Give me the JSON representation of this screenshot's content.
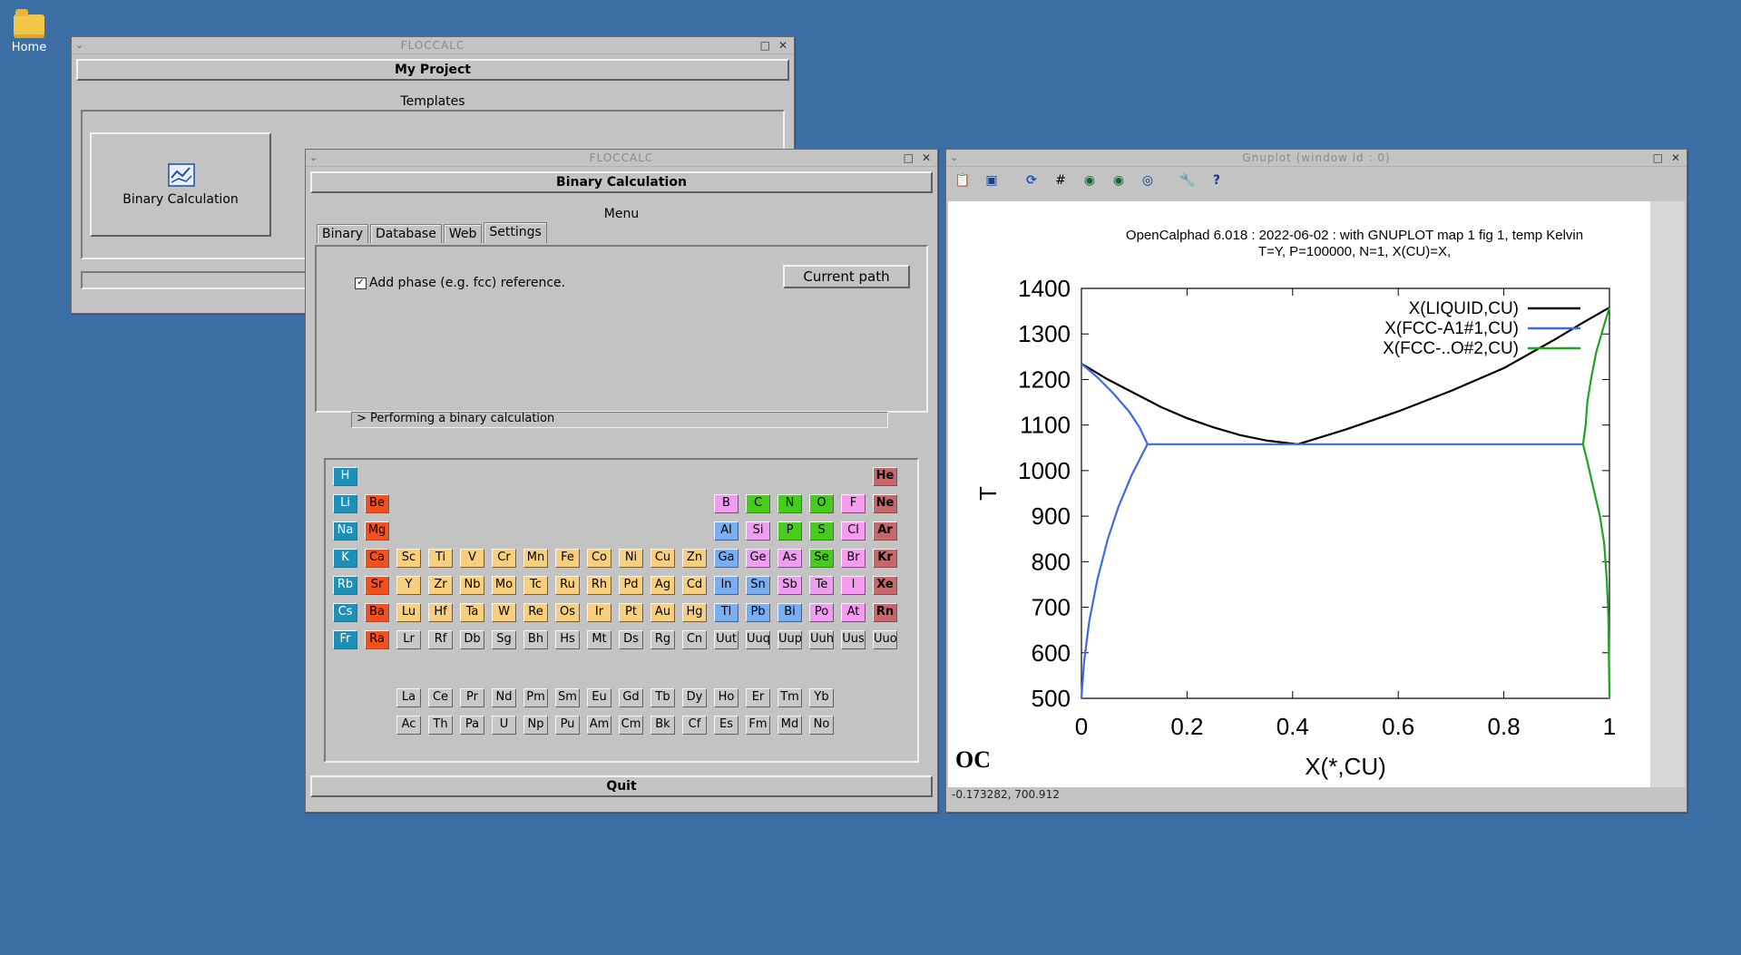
{
  "desktop": {
    "home_label": "Home"
  },
  "win_project": {
    "title": "FLOCCALC",
    "header": "My Project",
    "templates_label": "Templates",
    "binary_button": "Binary Calculation"
  },
  "win_binary": {
    "title": "FLOCCALC",
    "header": "Binary Calculation",
    "menu_label": "Menu",
    "tabs": [
      "Binary",
      "Database",
      "Web",
      "Settings"
    ],
    "checkbox_label": "Add phase (e.g. fcc) reference.",
    "checkbox_checked": true,
    "current_path_button": "Current path",
    "status_text": "> Performing a binary calculation",
    "quit_button": "Quit",
    "elements_main": [
      [
        "H",
        "",
        "",
        "",
        "",
        "",
        "",
        "",
        "",
        "",
        "",
        "",
        "",
        "",
        "",
        "",
        "",
        "He"
      ],
      [
        "Li",
        "Be",
        "",
        "",
        "",
        "",
        "",
        "",
        "",
        "",
        "",
        "",
        "B",
        "C",
        "N",
        "O",
        "F",
        "Ne"
      ],
      [
        "Na",
        "Mg",
        "",
        "",
        "",
        "",
        "",
        "",
        "",
        "",
        "",
        "",
        "Al",
        "Si",
        "P",
        "S",
        "Cl",
        "Ar"
      ],
      [
        "K",
        "Ca",
        "Sc",
        "Ti",
        "V",
        "Cr",
        "Mn",
        "Fe",
        "Co",
        "Ni",
        "Cu",
        "Zn",
        "Ga",
        "Ge",
        "As",
        "Se",
        "Br",
        "Kr"
      ],
      [
        "Rb",
        "Sr",
        "Y",
        "Zr",
        "Nb",
        "Mo",
        "Tc",
        "Ru",
        "Rh",
        "Pd",
        "Ag",
        "Cd",
        "In",
        "Sn",
        "Sb",
        "Te",
        "I",
        "Xe"
      ],
      [
        "Cs",
        "Ba",
        "Lu",
        "Hf",
        "Ta",
        "W",
        "Re",
        "Os",
        "Ir",
        "Pt",
        "Au",
        "Hg",
        "Tl",
        "Pb",
        "Bi",
        "Po",
        "At",
        "Rn"
      ],
      [
        "Fr",
        "Ra",
        "Lr",
        "Rf",
        "Db",
        "Sg",
        "Bh",
        "Hs",
        "Mt",
        "Ds",
        "Rg",
        "Cn",
        "Uut",
        "Uuq",
        "Uup",
        "Uuh",
        "Uus",
        "Uuo"
      ]
    ],
    "elements_lanthanides": [
      "La",
      "Ce",
      "Pr",
      "Nd",
      "Pm",
      "Sm",
      "Eu",
      "Gd",
      "Tb",
      "Dy",
      "Ho",
      "Er",
      "Tm",
      "Yb"
    ],
    "elements_actinides": [
      "Ac",
      "Th",
      "Pa",
      "U",
      "Np",
      "Pu",
      "Am",
      "Cm",
      "Bk",
      "Cf",
      "Es",
      "Fm",
      "Md",
      "No"
    ]
  },
  "win_gnuplot": {
    "title": "Gnuplot (window id : 0)",
    "coords_readout": "-0.173282,  700.912",
    "toolbar_icons": [
      "copy-icon",
      "save-icon",
      "replot-icon",
      "grid-icon",
      "zoom-prev-icon",
      "zoom-next-icon",
      "zoom-unzoom-icon",
      "config-icon",
      "help-icon"
    ],
    "logo": "OC"
  },
  "chart_data": {
    "type": "line",
    "title": "OpenCalphad    6.018 :  2022-06-02 : with GNUPLOT map 1 fig 1, temp Kelvin",
    "subtitle": "T=Y,  P=100000, N=1, X(CU)=X,",
    "xlabel": "X(*,CU)",
    "ylabel": "T",
    "xlim": [
      0,
      1
    ],
    "ylim": [
      500,
      1400
    ],
    "xticks": [
      "0",
      "0.2",
      "0.4",
      "0.6",
      "0.8",
      "1"
    ],
    "yticks": [
      "500",
      "600",
      "700",
      "800",
      "900",
      "1000",
      "1100",
      "1200",
      "1300",
      "1400"
    ],
    "legend_position": "top-right",
    "series": [
      {
        "name": "X(LIQUID,CU)",
        "color": "#000000",
        "segments": [
          [
            [
              0,
              1235
            ],
            [
              0.05,
              1200
            ],
            [
              0.1,
              1170
            ],
            [
              0.15,
              1140
            ],
            [
              0.2,
              1115
            ],
            [
              0.25,
              1095
            ],
            [
              0.3,
              1078
            ],
            [
              0.35,
              1066
            ],
            [
              0.41,
              1058
            ]
          ],
          [
            [
              0.41,
              1058
            ],
            [
              0.5,
              1090
            ],
            [
              0.6,
              1130
            ],
            [
              0.7,
              1175
            ],
            [
              0.8,
              1225
            ],
            [
              0.9,
              1290
            ],
            [
              0.95,
              1325
            ],
            [
              1.0,
              1358
            ]
          ]
        ]
      },
      {
        "name": "X(FCC-A1#1,CU)",
        "color": "#4169e1",
        "segments": [
          [
            [
              0,
              1235
            ],
            [
              0.03,
              1205
            ],
            [
              0.06,
              1170
            ],
            [
              0.09,
              1130
            ],
            [
              0.11,
              1095
            ],
            [
              0.125,
              1058
            ]
          ],
          [
            [
              0,
              500
            ],
            [
              0.005,
              580
            ],
            [
              0.015,
              670
            ],
            [
              0.03,
              760
            ],
            [
              0.05,
              850
            ],
            [
              0.07,
              920
            ],
            [
              0.095,
              990
            ],
            [
              0.125,
              1058
            ]
          ],
          [
            [
              0.125,
              1058
            ],
            [
              0.95,
              1058
            ]
          ]
        ]
      },
      {
        "name": "X(FCC-..O#2,CU)",
        "color": "#1ea51e",
        "segments": [
          [
            [
              1.0,
              1358
            ],
            [
              0.99,
              1320
            ],
            [
              0.975,
              1260
            ],
            [
              0.965,
              1200
            ],
            [
              0.958,
              1150
            ],
            [
              0.955,
              1100
            ],
            [
              0.95,
              1058
            ]
          ],
          [
            [
              0.95,
              1058
            ],
            [
              0.958,
              1020
            ],
            [
              0.97,
              960
            ],
            [
              0.982,
              900
            ],
            [
              0.99,
              840
            ],
            [
              0.995,
              760
            ],
            [
              0.998,
              680
            ],
            [
              1.0,
              500
            ]
          ]
        ]
      }
    ]
  }
}
